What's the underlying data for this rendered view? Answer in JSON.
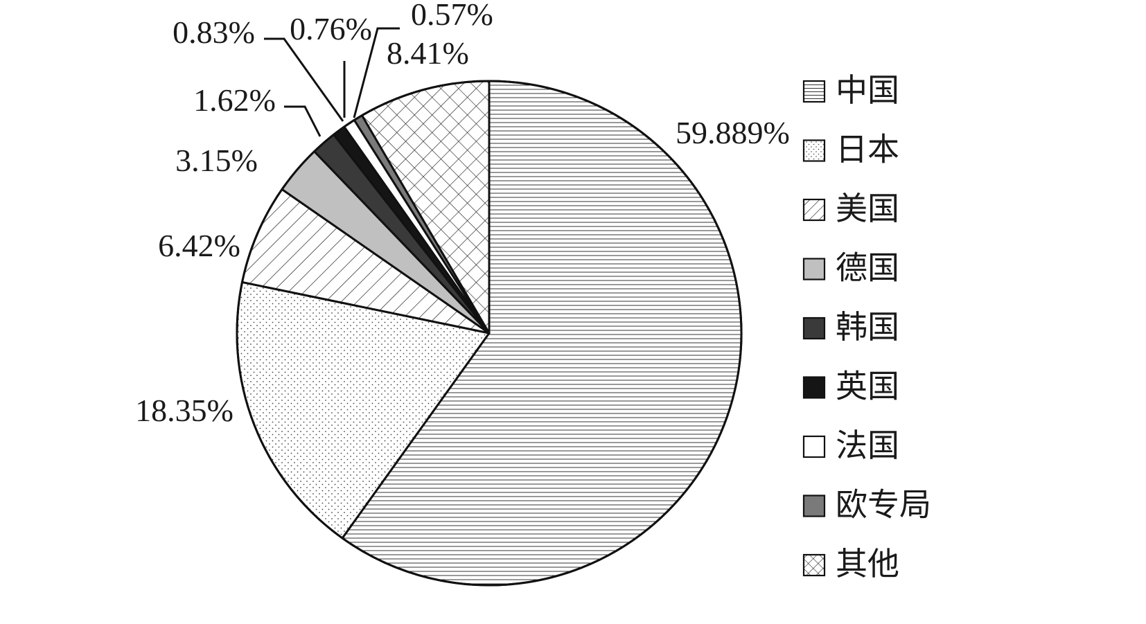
{
  "chart_data": {
    "type": "pie",
    "slices": [
      {
        "name": "中国",
        "value": 59.889,
        "label": "59.889%",
        "pattern": "hlines"
      },
      {
        "name": "日本",
        "value": 18.35,
        "label": "18.35%",
        "pattern": "dots"
      },
      {
        "name": "美国",
        "value": 6.42,
        "label": "6.42%",
        "pattern": "diag"
      },
      {
        "name": "德国",
        "value": 3.15,
        "label": "3.15%",
        "pattern": "solid",
        "color": "#c0c0c0"
      },
      {
        "name": "韩国",
        "value": 1.62,
        "label": "1.62%",
        "pattern": "solid",
        "color": "#3a3a3a"
      },
      {
        "name": "英国",
        "value": 0.83,
        "label": "0.83%",
        "pattern": "solid",
        "color": "#151515"
      },
      {
        "name": "法国",
        "value": 0.76,
        "label": "0.76%",
        "pattern": "solid",
        "color": "#ffffff"
      },
      {
        "name": "欧专局",
        "value": 0.57,
        "label": "0.57%",
        "pattern": "solid",
        "color": "#7a7a7a"
      },
      {
        "name": "其他",
        "value": 8.41,
        "label": "8.41%",
        "pattern": "crosshatch"
      }
    ],
    "start_angle_deg": 0,
    "direction": "clockwise",
    "legend_position": "right"
  }
}
